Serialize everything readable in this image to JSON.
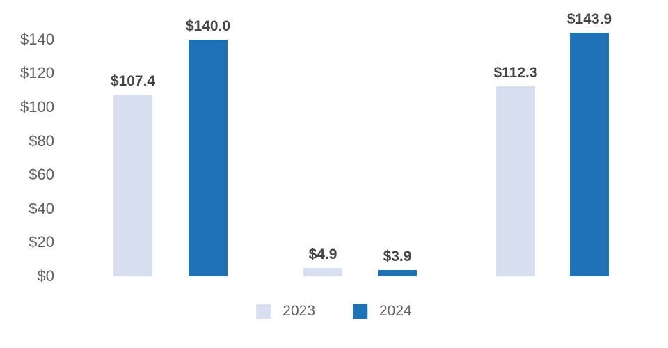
{
  "chart_data": {
    "type": "bar",
    "title": "",
    "currency_prefix": "$",
    "categories": [
      "",
      "",
      ""
    ],
    "series": [
      {
        "name": "2023",
        "color": "#D8DFF0",
        "values": [
          107.4,
          4.9,
          112.3
        ],
        "value_labels": [
          "$107.4",
          "$4.9",
          "$112.3"
        ]
      },
      {
        "name": "2024",
        "color": "#1F72B5",
        "values": [
          140.0,
          3.9,
          143.9
        ],
        "value_labels": [
          "$140.0",
          "$3.9",
          "$143.9"
        ]
      }
    ],
    "y_axis": {
      "ticks": [
        0,
        20,
        40,
        60,
        80,
        100,
        120,
        140
      ],
      "tick_labels": [
        "$0",
        "$20",
        "$40",
        "$60",
        "$80",
        "$100",
        "$120",
        "$140"
      ],
      "range": [
        0,
        146
      ]
    },
    "legend": {
      "position": "bottom",
      "entries": [
        "2023",
        "2024"
      ]
    },
    "grid": false,
    "axis_lines": false,
    "colors": {
      "series_2023": "#D8DFF0",
      "series_2024": "#1F72B5",
      "tick_text": "#606060",
      "data_label_text": "#444444",
      "background": "#FFFFFF"
    }
  }
}
